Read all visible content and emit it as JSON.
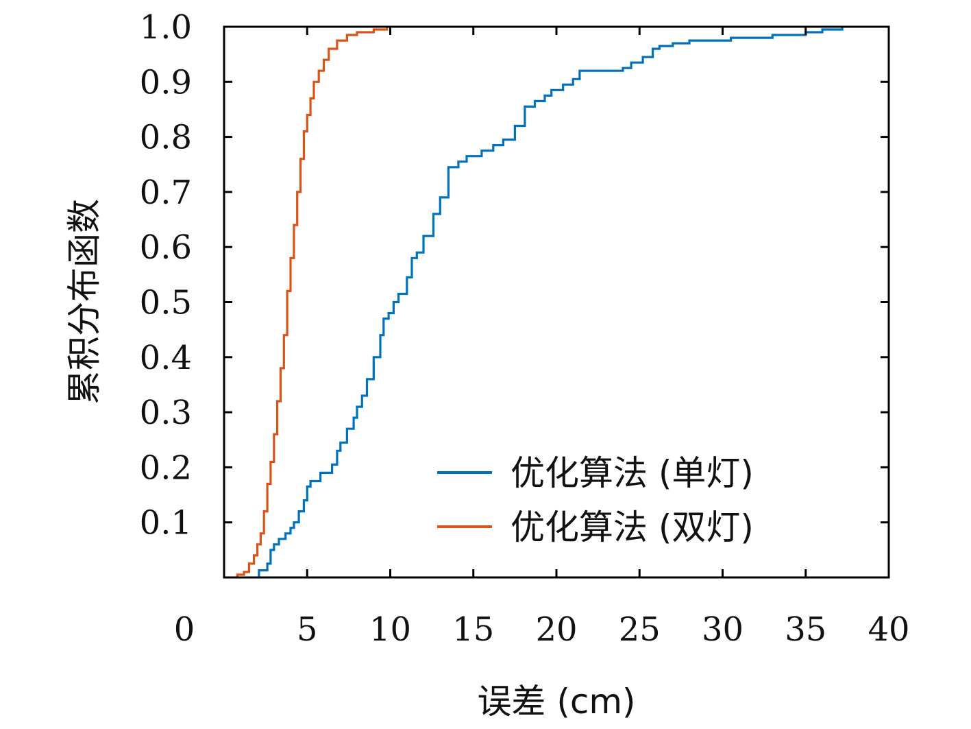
{
  "chart_data": {
    "type": "line",
    "title": "",
    "xlabel": "误差 (cm)",
    "ylabel": "累积分布函数",
    "xlim": [
      0,
      40
    ],
    "ylim": [
      0,
      1.0
    ],
    "x_ticks": [
      "0",
      "5",
      "10",
      "15",
      "20",
      "25",
      "30",
      "35",
      "40"
    ],
    "y_ticks": [
      "0.1",
      "0.2",
      "0.3",
      "0.4",
      "0.5",
      "0.6",
      "0.7",
      "0.8",
      "0.9",
      "1.0"
    ],
    "grid": false,
    "legend_position": "bottom-right",
    "series": [
      {
        "name": "优化算法 (单灯)",
        "color": "#0072BD",
        "step": true,
        "x": [
          2.1,
          2.6,
          2.8,
          3.0,
          3.3,
          3.7,
          4.0,
          4.2,
          4.5,
          4.8,
          5.0,
          5.2,
          5.8,
          6.5,
          6.8,
          7.0,
          7.4,
          7.8,
          8.0,
          8.3,
          8.6,
          9.0,
          9.4,
          9.6,
          9.9,
          10.2,
          10.5,
          11.0,
          11.3,
          11.6,
          12.0,
          12.6,
          13.0,
          13.5,
          14.1,
          14.6,
          15.5,
          16.2,
          16.8,
          17.5,
          18.1,
          18.7,
          19.3,
          19.7,
          20.4,
          21.0,
          21.4,
          22.8,
          24.0,
          24.5,
          25.2,
          25.8,
          26.2,
          27.0,
          28.0,
          30.5,
          33.0,
          35.0,
          36.0,
          37.2
        ],
        "y": [
          0.013,
          0.025,
          0.05,
          0.06,
          0.07,
          0.08,
          0.09,
          0.1,
          0.12,
          0.14,
          0.165,
          0.175,
          0.19,
          0.205,
          0.23,
          0.245,
          0.27,
          0.29,
          0.31,
          0.33,
          0.36,
          0.4,
          0.44,
          0.47,
          0.48,
          0.5,
          0.515,
          0.545,
          0.58,
          0.59,
          0.62,
          0.66,
          0.69,
          0.745,
          0.755,
          0.765,
          0.775,
          0.785,
          0.795,
          0.82,
          0.855,
          0.865,
          0.875,
          0.885,
          0.895,
          0.905,
          0.92,
          0.92,
          0.925,
          0.935,
          0.945,
          0.96,
          0.965,
          0.97,
          0.975,
          0.98,
          0.985,
          0.99,
          0.995,
          1.0
        ]
      },
      {
        "name": "优化算法 (双灯)",
        "color": "#D95319",
        "step": true,
        "x": [
          0.8,
          1.2,
          1.5,
          1.8,
          2.0,
          2.2,
          2.4,
          2.6,
          2.8,
          3.0,
          3.2,
          3.4,
          3.6,
          3.8,
          4.0,
          4.2,
          4.4,
          4.6,
          4.8,
          5.0,
          5.2,
          5.4,
          5.7,
          6.0,
          6.3,
          6.8,
          7.4,
          8.0,
          9.0,
          9.8
        ],
        "y": [
          0.005,
          0.01,
          0.025,
          0.04,
          0.06,
          0.08,
          0.12,
          0.17,
          0.21,
          0.26,
          0.32,
          0.38,
          0.44,
          0.52,
          0.58,
          0.64,
          0.7,
          0.76,
          0.81,
          0.84,
          0.87,
          0.9,
          0.92,
          0.94,
          0.96,
          0.975,
          0.985,
          0.99,
          0.995,
          1.0
        ]
      }
    ]
  }
}
